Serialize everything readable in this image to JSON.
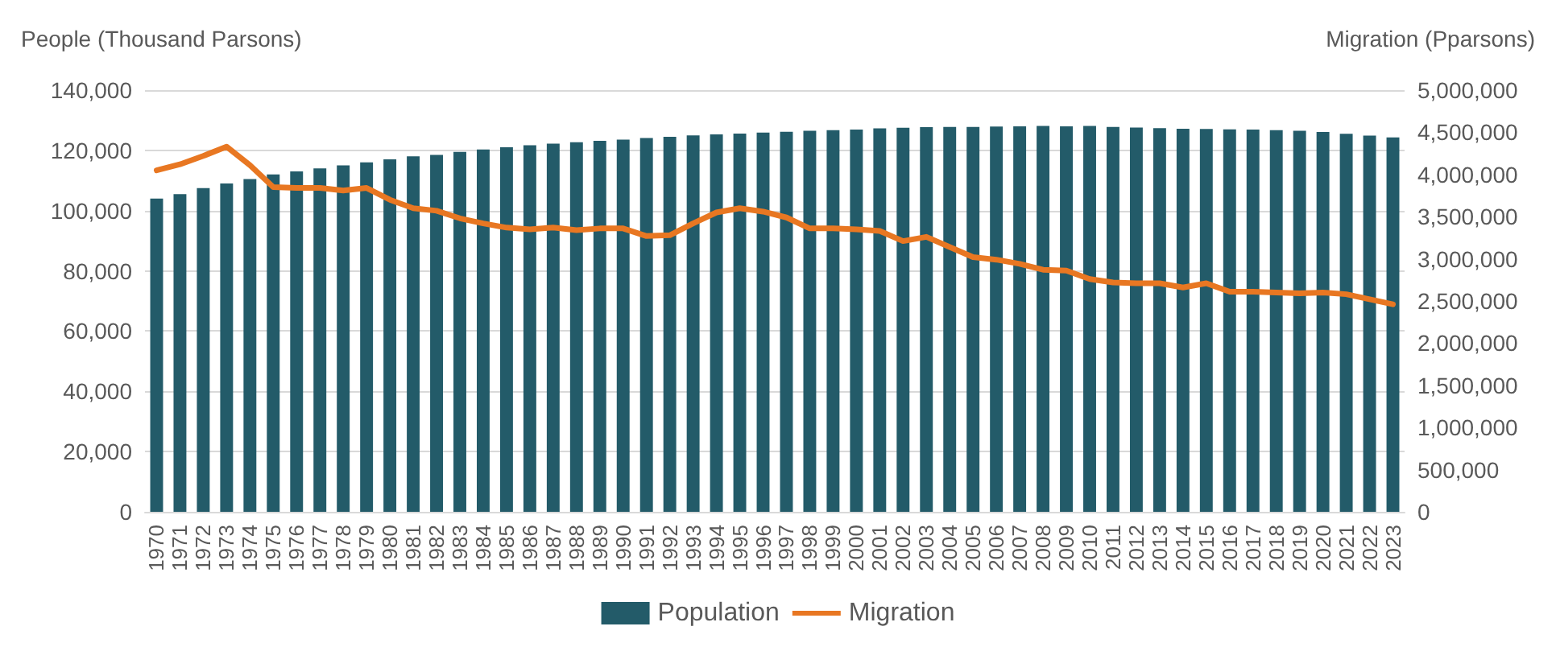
{
  "chart_data": {
    "type": "bar",
    "ylabel": "People (Thousand Parsons)",
    "y2label": "Migration (Pparsons)",
    "categories": [
      "1970",
      "1971",
      "1972",
      "1973",
      "1974",
      "1975",
      "1976",
      "1977",
      "1978",
      "1979",
      "1980",
      "1981",
      "1982",
      "1983",
      "1984",
      "1985",
      "1986",
      "1987",
      "1988",
      "1989",
      "1990",
      "1991",
      "1992",
      "1993",
      "1994",
      "1995",
      "1996",
      "1997",
      "1998",
      "1999",
      "2000",
      "2001",
      "2002",
      "2003",
      "2004",
      "2005",
      "2006",
      "2007",
      "2008",
      "2009",
      "2010",
      "2011",
      "2012",
      "2013",
      "2014",
      "2015",
      "2016",
      "2017",
      "2018",
      "2019",
      "2020",
      "2021",
      "2022",
      "2023"
    ],
    "series": [
      {
        "name": "Population",
        "color": "#235b69",
        "values": [
          104000,
          105500,
          107500,
          109000,
          110500,
          112000,
          113000,
          114000,
          115000,
          116000,
          117000,
          118000,
          118500,
          119500,
          120300,
          121000,
          121700,
          122200,
          122700,
          123200,
          123600,
          124100,
          124500,
          125000,
          125300,
          125600,
          125900,
          126200,
          126500,
          126700,
          126900,
          127300,
          127500,
          127700,
          127800,
          127800,
          127900,
          128000,
          128100,
          128000,
          128100,
          127800,
          127600,
          127400,
          127200,
          127100,
          127000,
          126900,
          126700,
          126500,
          126100,
          125500,
          124900,
          124300
        ]
      },
      {
        "name": "Migration",
        "type": "line",
        "axis": "y2",
        "color": "#e87722",
        "values": [
          4050000,
          4120000,
          4220000,
          4330000,
          4110000,
          3850000,
          3840000,
          3840000,
          3810000,
          3840000,
          3700000,
          3600000,
          3570000,
          3480000,
          3420000,
          3370000,
          3350000,
          3370000,
          3340000,
          3360000,
          3360000,
          3270000,
          3280000,
          3420000,
          3550000,
          3600000,
          3560000,
          3490000,
          3360000,
          3360000,
          3350000,
          3330000,
          3210000,
          3260000,
          3140000,
          3020000,
          2990000,
          2940000,
          2870000,
          2860000,
          2760000,
          2720000,
          2710000,
          2710000,
          2660000,
          2710000,
          2610000,
          2610000,
          2600000,
          2590000,
          2600000,
          2580000,
          2520000,
          2460000
        ]
      }
    ],
    "ylim": [
      0,
      140000
    ],
    "yticks": [
      0,
      {
        "value": 20000,
        "label": "20,000"
      },
      {
        "value": 40000,
        "label": "40,000"
      },
      {
        "value": 60000,
        "label": "60,000"
      },
      {
        "value": 80000,
        "label": "80,000"
      },
      {
        "value": 100000,
        "label": "100,000"
      },
      {
        "value": 120000,
        "label": "120,000"
      },
      {
        "value": 140000,
        "label": "140,000"
      }
    ],
    "y2lim": [
      0,
      5000000
    ],
    "y2ticks": [
      0,
      {
        "value": 500000,
        "label": "500,000"
      },
      {
        "value": 1000000,
        "label": "1,000,000"
      },
      {
        "value": 1500000,
        "label": "1,500,000"
      },
      {
        "value": 2000000,
        "label": "2,000,000"
      },
      {
        "value": 2500000,
        "label": "2,500,000"
      },
      {
        "value": 3000000,
        "label": "3,000,000"
      },
      {
        "value": 3500000,
        "label": "3,500,000"
      },
      {
        "value": 4000000,
        "label": "4,000,000"
      },
      {
        "value": 4500000,
        "label": "4,500,000"
      },
      {
        "value": 5000000,
        "label": "5,000,000"
      }
    ],
    "grid": "y",
    "legend": "bottom",
    "marker": "none",
    "line_style": "solid"
  }
}
